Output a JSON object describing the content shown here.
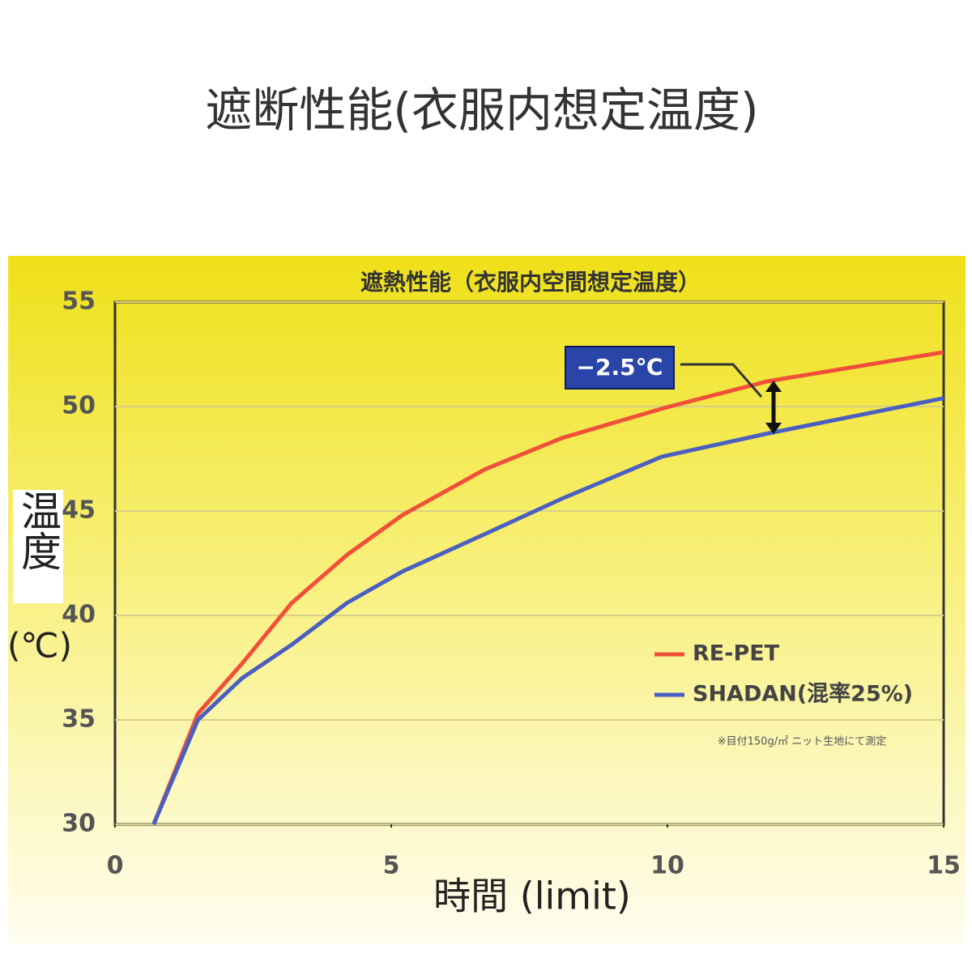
{
  "chart_data": {
    "type": "line",
    "title": "遮断性能(衣服内想定温度)",
    "subtitle": "遮熱性能（衣服内空間想定温度）",
    "x_label": "時間 (limit)",
    "y_label": "温度",
    "y_label_unit": "(℃)",
    "x": [
      0.7,
      1.5,
      2.3,
      3.2,
      4.2,
      5.2,
      6.7,
      8.1,
      9.9,
      11.8,
      15
    ],
    "series": [
      {
        "name": "RE-PET",
        "color": "#f0503a",
        "values": [
          30,
          35.3,
          37.7,
          40.6,
          42.9,
          44.8,
          47.0,
          48.5,
          49.9,
          51.2,
          52.6
        ]
      },
      {
        "name": "SHADAN(混率25%)",
        "color": "#4a5fc0",
        "values": [
          30,
          35.0,
          37.0,
          38.6,
          40.6,
          42.1,
          43.9,
          45.6,
          47.6,
          48.7,
          50.4
        ]
      }
    ],
    "xlim": [
      0,
      15
    ],
    "xticks": [
      0,
      5,
      10,
      15
    ],
    "ylim": [
      30,
      55
    ],
    "yticks": [
      30,
      35,
      40,
      45,
      50,
      55
    ],
    "grid": true,
    "annotations": [
      {
        "text": "−2.5℃"
      }
    ],
    "note": "※目付150g/㎡ ニット生地にて測定"
  }
}
